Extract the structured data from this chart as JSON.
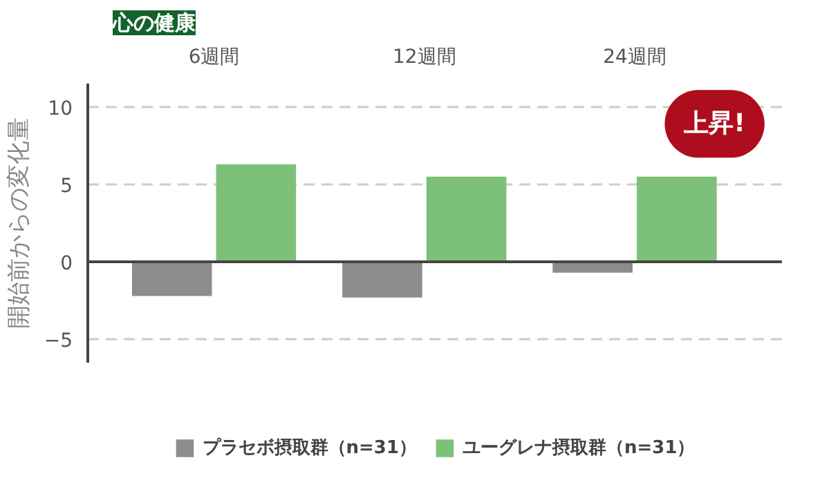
{
  "chart_data": {
    "type": "bar",
    "title": "心の健康",
    "ylabel": "開始前からの変化量",
    "categories": [
      "6週間",
      "12週間",
      "24週間"
    ],
    "series": [
      {
        "name": "プラセボ摂取群（n=31）",
        "color": "#8c8c8c",
        "values": [
          -2.2,
          -2.3,
          -0.7
        ]
      },
      {
        "name": "ユーグレナ摂取群（n=31）",
        "color": "#7dc07a",
        "values": [
          6.3,
          5.5,
          5.5
        ]
      }
    ],
    "ylim": [
      -6.5,
      11.5
    ],
    "yticks": [
      -5,
      0,
      5,
      10
    ],
    "grid": "y",
    "legend": "bottom",
    "ref_lines": [
      {
        "axis": "y",
        "value": 0,
        "color": "#444444"
      }
    ],
    "annotations": [
      "上昇!"
    ]
  }
}
